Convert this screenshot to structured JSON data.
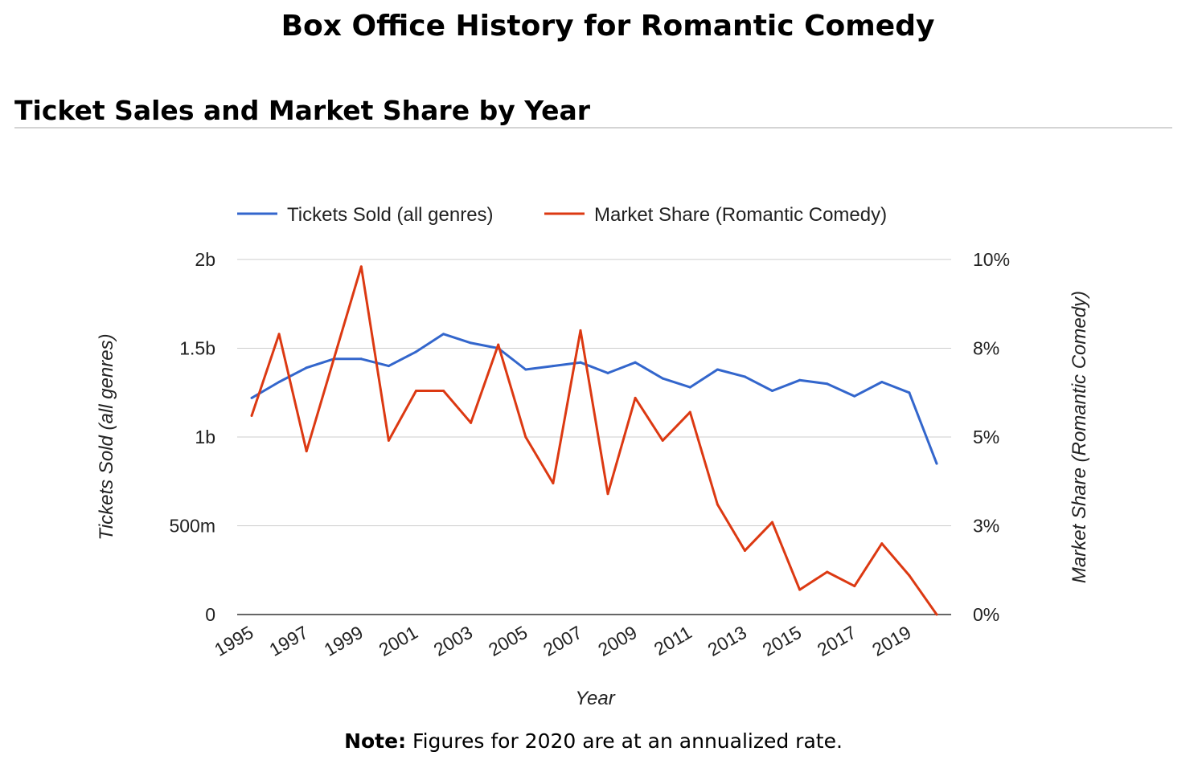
{
  "page": {
    "title": "Box Office History for Romantic Comedy",
    "section_title": "Ticket Sales and Market Share by Year",
    "note_label": "Note:",
    "note_text": " Figures for 2020 are at an annualized rate."
  },
  "colors": {
    "tickets": "#3366cc",
    "share": "#dc3912",
    "grid": "#cccccc",
    "axis_text": "#222222"
  },
  "chart_data": {
    "type": "line",
    "xlabel": "Year",
    "x": [
      1995,
      1996,
      1997,
      1998,
      1999,
      2000,
      2001,
      2002,
      2003,
      2004,
      2005,
      2006,
      2007,
      2008,
      2009,
      2010,
      2011,
      2012,
      2013,
      2014,
      2015,
      2016,
      2017,
      2018,
      2019,
      2020
    ],
    "x_tick_labels": [
      "1995",
      "1997",
      "1999",
      "2001",
      "2003",
      "2005",
      "2007",
      "2009",
      "2011",
      "2013",
      "2015",
      "2017",
      "2019"
    ],
    "legend_position": "top",
    "grid": true,
    "series": [
      {
        "name": "Tickets Sold (all genres)",
        "axis": "left",
        "values": [
          1.22,
          1.31,
          1.39,
          1.44,
          1.44,
          1.4,
          1.48,
          1.58,
          1.53,
          1.5,
          1.38,
          1.4,
          1.42,
          1.36,
          1.42,
          1.33,
          1.28,
          1.38,
          1.34,
          1.26,
          1.32,
          1.3,
          1.23,
          1.31,
          1.25,
          0.85
        ]
      },
      {
        "name": "Market Share (Romantic Comedy)",
        "axis": "right",
        "values": [
          5.6,
          7.9,
          4.6,
          7.2,
          9.8,
          4.9,
          6.3,
          6.3,
          5.4,
          7.6,
          5.0,
          3.7,
          8.0,
          3.4,
          6.1,
          4.9,
          5.7,
          3.1,
          1.8,
          2.6,
          0.7,
          1.2,
          0.8,
          2.0,
          1.1,
          0.0
        ]
      }
    ],
    "y_left": {
      "label": "Tickets Sold (all genres)",
      "unit": "billions",
      "range": [
        0,
        2
      ],
      "ticks": [
        0,
        0.5,
        1,
        1.5,
        2
      ],
      "tick_labels": [
        "0",
        "500m",
        "1b",
        "1.5b",
        "2b"
      ]
    },
    "y_right": {
      "label": "Market Share (Romantic Comedy)",
      "unit": "percent",
      "range": [
        0,
        10
      ],
      "ticks": [
        0,
        2.5,
        5,
        7.5,
        10
      ],
      "tick_labels": [
        "0%",
        "3%",
        "5%",
        "8%",
        "10%"
      ]
    }
  }
}
